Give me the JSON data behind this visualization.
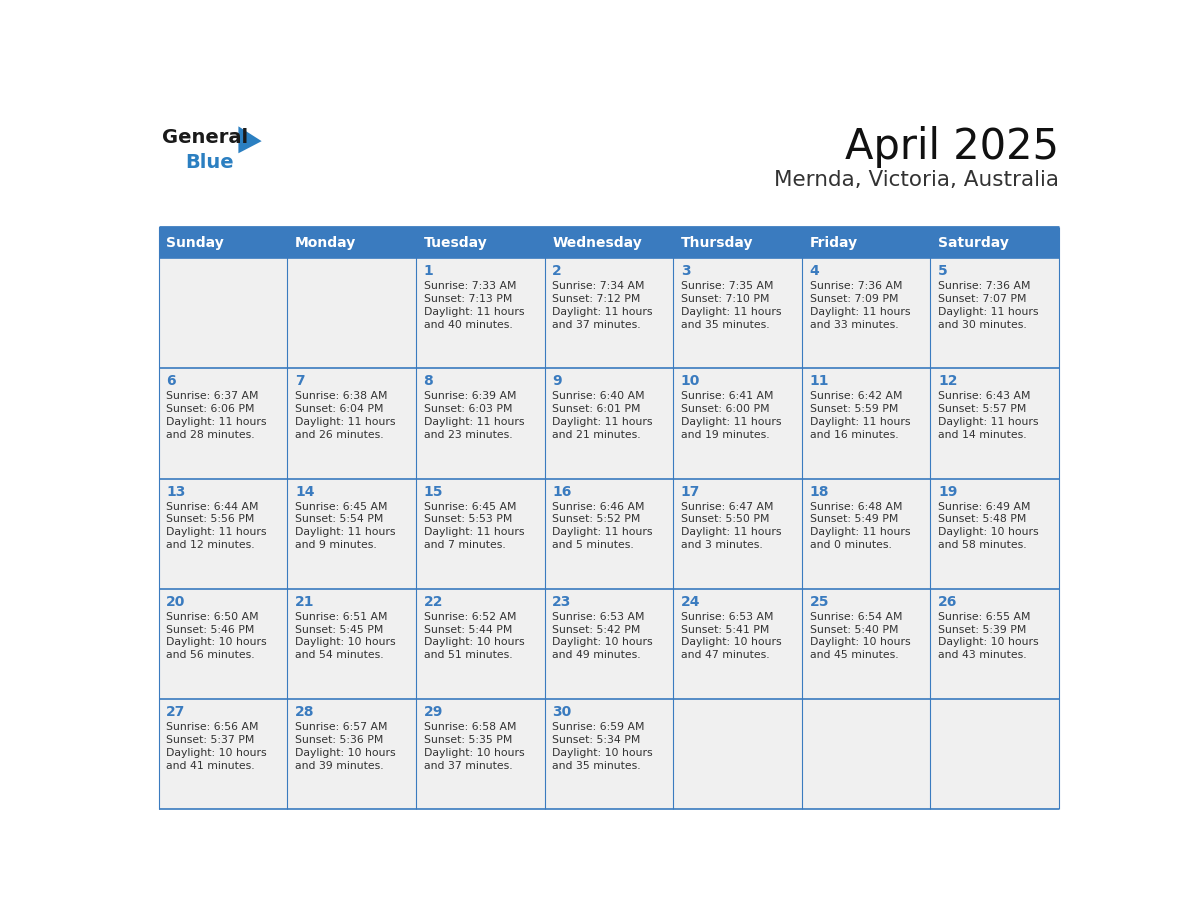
{
  "title": "April 2025",
  "subtitle": "Mernda, Victoria, Australia",
  "header_color": "#3a7bbf",
  "header_text_color": "#ffffff",
  "cell_bg_color": "#f0f0f0",
  "text_color": "#333333",
  "border_color": "#3a7bbf",
  "days_of_week": [
    "Sunday",
    "Monday",
    "Tuesday",
    "Wednesday",
    "Thursday",
    "Friday",
    "Saturday"
  ],
  "weeks": [
    [
      {
        "day": "",
        "info": ""
      },
      {
        "day": "",
        "info": ""
      },
      {
        "day": "1",
        "info": "Sunrise: 7:33 AM\nSunset: 7:13 PM\nDaylight: 11 hours\nand 40 minutes."
      },
      {
        "day": "2",
        "info": "Sunrise: 7:34 AM\nSunset: 7:12 PM\nDaylight: 11 hours\nand 37 minutes."
      },
      {
        "day": "3",
        "info": "Sunrise: 7:35 AM\nSunset: 7:10 PM\nDaylight: 11 hours\nand 35 minutes."
      },
      {
        "day": "4",
        "info": "Sunrise: 7:36 AM\nSunset: 7:09 PM\nDaylight: 11 hours\nand 33 minutes."
      },
      {
        "day": "5",
        "info": "Sunrise: 7:36 AM\nSunset: 7:07 PM\nDaylight: 11 hours\nand 30 minutes."
      }
    ],
    [
      {
        "day": "6",
        "info": "Sunrise: 6:37 AM\nSunset: 6:06 PM\nDaylight: 11 hours\nand 28 minutes."
      },
      {
        "day": "7",
        "info": "Sunrise: 6:38 AM\nSunset: 6:04 PM\nDaylight: 11 hours\nand 26 minutes."
      },
      {
        "day": "8",
        "info": "Sunrise: 6:39 AM\nSunset: 6:03 PM\nDaylight: 11 hours\nand 23 minutes."
      },
      {
        "day": "9",
        "info": "Sunrise: 6:40 AM\nSunset: 6:01 PM\nDaylight: 11 hours\nand 21 minutes."
      },
      {
        "day": "10",
        "info": "Sunrise: 6:41 AM\nSunset: 6:00 PM\nDaylight: 11 hours\nand 19 minutes."
      },
      {
        "day": "11",
        "info": "Sunrise: 6:42 AM\nSunset: 5:59 PM\nDaylight: 11 hours\nand 16 minutes."
      },
      {
        "day": "12",
        "info": "Sunrise: 6:43 AM\nSunset: 5:57 PM\nDaylight: 11 hours\nand 14 minutes."
      }
    ],
    [
      {
        "day": "13",
        "info": "Sunrise: 6:44 AM\nSunset: 5:56 PM\nDaylight: 11 hours\nand 12 minutes."
      },
      {
        "day": "14",
        "info": "Sunrise: 6:45 AM\nSunset: 5:54 PM\nDaylight: 11 hours\nand 9 minutes."
      },
      {
        "day": "15",
        "info": "Sunrise: 6:45 AM\nSunset: 5:53 PM\nDaylight: 11 hours\nand 7 minutes."
      },
      {
        "day": "16",
        "info": "Sunrise: 6:46 AM\nSunset: 5:52 PM\nDaylight: 11 hours\nand 5 minutes."
      },
      {
        "day": "17",
        "info": "Sunrise: 6:47 AM\nSunset: 5:50 PM\nDaylight: 11 hours\nand 3 minutes."
      },
      {
        "day": "18",
        "info": "Sunrise: 6:48 AM\nSunset: 5:49 PM\nDaylight: 11 hours\nand 0 minutes."
      },
      {
        "day": "19",
        "info": "Sunrise: 6:49 AM\nSunset: 5:48 PM\nDaylight: 10 hours\nand 58 minutes."
      }
    ],
    [
      {
        "day": "20",
        "info": "Sunrise: 6:50 AM\nSunset: 5:46 PM\nDaylight: 10 hours\nand 56 minutes."
      },
      {
        "day": "21",
        "info": "Sunrise: 6:51 AM\nSunset: 5:45 PM\nDaylight: 10 hours\nand 54 minutes."
      },
      {
        "day": "22",
        "info": "Sunrise: 6:52 AM\nSunset: 5:44 PM\nDaylight: 10 hours\nand 51 minutes."
      },
      {
        "day": "23",
        "info": "Sunrise: 6:53 AM\nSunset: 5:42 PM\nDaylight: 10 hours\nand 49 minutes."
      },
      {
        "day": "24",
        "info": "Sunrise: 6:53 AM\nSunset: 5:41 PM\nDaylight: 10 hours\nand 47 minutes."
      },
      {
        "day": "25",
        "info": "Sunrise: 6:54 AM\nSunset: 5:40 PM\nDaylight: 10 hours\nand 45 minutes."
      },
      {
        "day": "26",
        "info": "Sunrise: 6:55 AM\nSunset: 5:39 PM\nDaylight: 10 hours\nand 43 minutes."
      }
    ],
    [
      {
        "day": "27",
        "info": "Sunrise: 6:56 AM\nSunset: 5:37 PM\nDaylight: 10 hours\nand 41 minutes."
      },
      {
        "day": "28",
        "info": "Sunrise: 6:57 AM\nSunset: 5:36 PM\nDaylight: 10 hours\nand 39 minutes."
      },
      {
        "day": "29",
        "info": "Sunrise: 6:58 AM\nSunset: 5:35 PM\nDaylight: 10 hours\nand 37 minutes."
      },
      {
        "day": "30",
        "info": "Sunrise: 6:59 AM\nSunset: 5:34 PM\nDaylight: 10 hours\nand 35 minutes."
      },
      {
        "day": "",
        "info": ""
      },
      {
        "day": "",
        "info": ""
      },
      {
        "day": "",
        "info": ""
      }
    ]
  ],
  "logo_general_color": "#1a1a1a",
  "logo_blue_color": "#2b7fc1"
}
